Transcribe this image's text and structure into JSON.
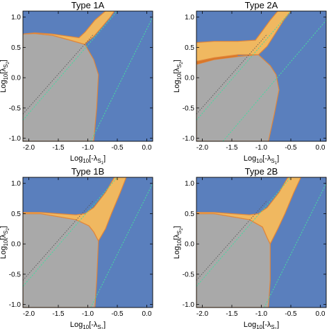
{
  "figure": {
    "colors": {
      "blue": "#5a7fbd",
      "gray": "#a9a9a9",
      "yellow": "#f0b860",
      "orange": "#d9772a",
      "boundary": "#e0863a",
      "green_line": "#48d8a0",
      "white_dotted": "#ffffff",
      "gray_dotted": "#555555"
    }
  },
  "chart_data": [
    {
      "type": "area",
      "title": "Type 1A",
      "xlabel": "Log10[-λS1]",
      "ylabel": "Log10[λS2]",
      "xlim": [
        -2.1,
        0.1
      ],
      "ylim": [
        -1.05,
        1.1
      ],
      "xticks": [
        "-2.0",
        "-1.5",
        "-1.0",
        "-0.5",
        "0.0"
      ],
      "yticks": [
        "-1.0",
        "-0.5",
        "0.0",
        "0.5",
        "1.0"
      ],
      "series": [
        {
          "region": "gray",
          "polygon": [
            [
              -2.1,
              0.72
            ],
            [
              -1.9,
              0.73
            ],
            [
              -1.6,
              0.7
            ],
            [
              -1.3,
              0.62
            ],
            [
              -1.05,
              0.55
            ],
            [
              -0.9,
              0.3
            ],
            [
              -0.82,
              0.05
            ],
            [
              -0.85,
              -0.5
            ],
            [
              -0.9,
              -1.05
            ],
            [
              -2.1,
              -1.05
            ]
          ]
        },
        {
          "region": "yellow",
          "polygon": [
            [
              -2.1,
              0.72
            ],
            [
              -1.9,
              0.73
            ],
            [
              -1.6,
              0.7
            ],
            [
              -1.3,
              0.62
            ],
            [
              -1.05,
              0.55
            ],
            [
              -1.0,
              0.6
            ],
            [
              -0.9,
              0.68
            ],
            [
              -0.75,
              0.85
            ],
            [
              -0.62,
              1.0
            ],
            [
              -0.55,
              1.1
            ],
            [
              -0.7,
              1.1
            ],
            [
              -0.88,
              0.95
            ],
            [
              -1.05,
              0.75
            ],
            [
              -1.15,
              0.66
            ],
            [
              -1.3,
              0.68
            ],
            [
              -1.6,
              0.72
            ],
            [
              -1.9,
              0.74
            ]
          ]
        },
        {
          "region": "line_green",
          "points": [
            [
              -2.1,
              -0.7
            ],
            [
              -0.5,
              1.1
            ]
          ]
        },
        {
          "region": "line_green",
          "points": [
            [
              -0.95,
              -1.05
            ],
            [
              0.1,
              1.0
            ]
          ]
        }
      ]
    },
    {
      "type": "area",
      "title": "Type 2A",
      "xlabel": "Log10[-λS1]",
      "ylabel": "",
      "xlim": [
        -2.1,
        0.1
      ],
      "ylim": [
        -1.05,
        1.1
      ],
      "xticks": [
        "-2.0",
        "-1.5",
        "-1.0",
        "-0.5",
        "0.0"
      ],
      "yticks": [
        "-1.0",
        "-0.5",
        "0.0",
        "0.5",
        "1.0"
      ],
      "series": [
        {
          "region": "gray",
          "polygon": [
            [
              -2.1,
              0.22
            ],
            [
              -1.8,
              0.3
            ],
            [
              -1.4,
              0.35
            ],
            [
              -1.05,
              0.38
            ],
            [
              -0.85,
              0.2
            ],
            [
              -0.75,
              0.05
            ],
            [
              -0.7,
              -0.2
            ],
            [
              -0.78,
              -0.6
            ],
            [
              -0.88,
              -1.05
            ],
            [
              -2.1,
              -1.05
            ]
          ]
        },
        {
          "region": "orange",
          "polygon": [
            [
              -2.1,
              0.22
            ],
            [
              -1.8,
              0.3
            ],
            [
              -1.4,
              0.35
            ],
            [
              -1.4,
              0.38
            ],
            [
              -1.8,
              0.33
            ],
            [
              -2.1,
              0.27
            ]
          ]
        },
        {
          "region": "yellow",
          "polygon": [
            [
              -2.1,
              0.27
            ],
            [
              -1.8,
              0.33
            ],
            [
              -1.4,
              0.38
            ],
            [
              -1.05,
              0.38
            ],
            [
              -0.9,
              0.52
            ],
            [
              -0.75,
              0.75
            ],
            [
              -0.62,
              0.95
            ],
            [
              -0.5,
              1.1
            ],
            [
              -0.72,
              1.1
            ],
            [
              -0.85,
              0.95
            ],
            [
              -1.0,
              0.75
            ],
            [
              -1.1,
              0.62
            ],
            [
              -1.4,
              0.6
            ],
            [
              -1.8,
              0.6
            ],
            [
              -2.1,
              0.58
            ]
          ]
        },
        {
          "region": "line_green",
          "points": [
            [
              -2.1,
              -0.7
            ],
            [
              -0.5,
              1.1
            ]
          ]
        },
        {
          "region": "line_green",
          "points": [
            [
              -1.65,
              -1.05
            ],
            [
              0.1,
              0.95
            ]
          ]
        }
      ]
    },
    {
      "type": "area",
      "title": "Type 1B",
      "xlabel": "Log10[-λS1]",
      "ylabel": "Log10[λS2]",
      "xlim": [
        -2.1,
        0.1
      ],
      "ylim": [
        -1.05,
        1.1
      ],
      "xticks": [
        "-2.0",
        "-1.5",
        "-1.0",
        "-0.5",
        "0.0"
      ],
      "yticks": [
        "-1.0",
        "-0.5",
        "0.0",
        "0.5",
        "1.0"
      ],
      "series": [
        {
          "region": "gray",
          "polygon": [
            [
              -2.1,
              0.5
            ],
            [
              -1.8,
              0.5
            ],
            [
              -1.5,
              0.45
            ],
            [
              -1.2,
              0.4
            ],
            [
              -0.98,
              0.3
            ],
            [
              -0.9,
              0.2
            ],
            [
              -0.82,
              0.05
            ],
            [
              -0.85,
              -0.6
            ],
            [
              -0.88,
              -1.05
            ],
            [
              -2.1,
              -1.05
            ]
          ]
        },
        {
          "region": "yellow",
          "polygon": [
            [
              -0.98,
              0.3
            ],
            [
              -0.9,
              0.2
            ],
            [
              -0.82,
              0.05
            ],
            [
              -0.7,
              0.25
            ],
            [
              -0.6,
              0.5
            ],
            [
              -0.45,
              0.85
            ],
            [
              -0.35,
              1.1
            ],
            [
              -0.55,
              1.1
            ],
            [
              -0.7,
              0.85
            ],
            [
              -0.9,
              0.6
            ],
            [
              -1.05,
              0.5
            ],
            [
              -1.2,
              0.48
            ],
            [
              -1.5,
              0.5
            ],
            [
              -1.8,
              0.52
            ],
            [
              -2.1,
              0.52
            ],
            [
              -2.1,
              0.5
            ],
            [
              -1.8,
              0.5
            ],
            [
              -1.5,
              0.45
            ],
            [
              -1.2,
              0.4
            ]
          ]
        },
        {
          "region": "line_green",
          "points": [
            [
              -2.1,
              -0.7
            ],
            [
              -0.5,
              1.1
            ]
          ]
        },
        {
          "region": "line_green",
          "points": [
            [
              -0.95,
              -1.05
            ],
            [
              0.1,
              1.0
            ]
          ]
        }
      ]
    },
    {
      "type": "area",
      "title": "Type 2B",
      "xlabel": "Log10[-λS1]",
      "ylabel": "",
      "xlim": [
        -2.1,
        0.1
      ],
      "ylim": [
        -1.05,
        1.1
      ],
      "xticks": [
        "-2.0",
        "-1.5",
        "-1.0",
        "-0.5",
        "0.0"
      ],
      "yticks": [
        "-1.0",
        "-0.5",
        "0.0",
        "0.5",
        "1.0"
      ],
      "series": [
        {
          "region": "gray",
          "polygon": [
            [
              -2.1,
              0.5
            ],
            [
              -1.8,
              0.5
            ],
            [
              -1.5,
              0.45
            ],
            [
              -1.2,
              0.4
            ],
            [
              -0.98,
              0.28
            ],
            [
              -0.9,
              0.1
            ],
            [
              -0.85,
              0.0
            ],
            [
              -0.85,
              -0.6
            ],
            [
              -0.88,
              -1.05
            ],
            [
              -2.1,
              -1.05
            ]
          ]
        },
        {
          "region": "yellow",
          "polygon": [
            [
              -0.98,
              0.28
            ],
            [
              -0.9,
              0.1
            ],
            [
              -0.85,
              0.0
            ],
            [
              -0.72,
              0.25
            ],
            [
              -0.6,
              0.5
            ],
            [
              -0.45,
              0.85
            ],
            [
              -0.33,
              1.1
            ],
            [
              -0.55,
              1.1
            ],
            [
              -0.7,
              0.85
            ],
            [
              -0.9,
              0.6
            ],
            [
              -1.05,
              0.5
            ],
            [
              -1.2,
              0.48
            ],
            [
              -1.5,
              0.5
            ],
            [
              -1.8,
              0.52
            ],
            [
              -2.1,
              0.52
            ],
            [
              -2.1,
              0.5
            ],
            [
              -1.8,
              0.5
            ],
            [
              -1.5,
              0.45
            ],
            [
              -1.2,
              0.4
            ]
          ]
        },
        {
          "region": "line_green",
          "points": [
            [
              -2.1,
              -0.7
            ],
            [
              -0.5,
              1.1
            ]
          ]
        },
        {
          "region": "line_green",
          "points": [
            [
              -0.95,
              -1.05
            ],
            [
              0.1,
              1.0
            ]
          ]
        }
      ]
    }
  ]
}
